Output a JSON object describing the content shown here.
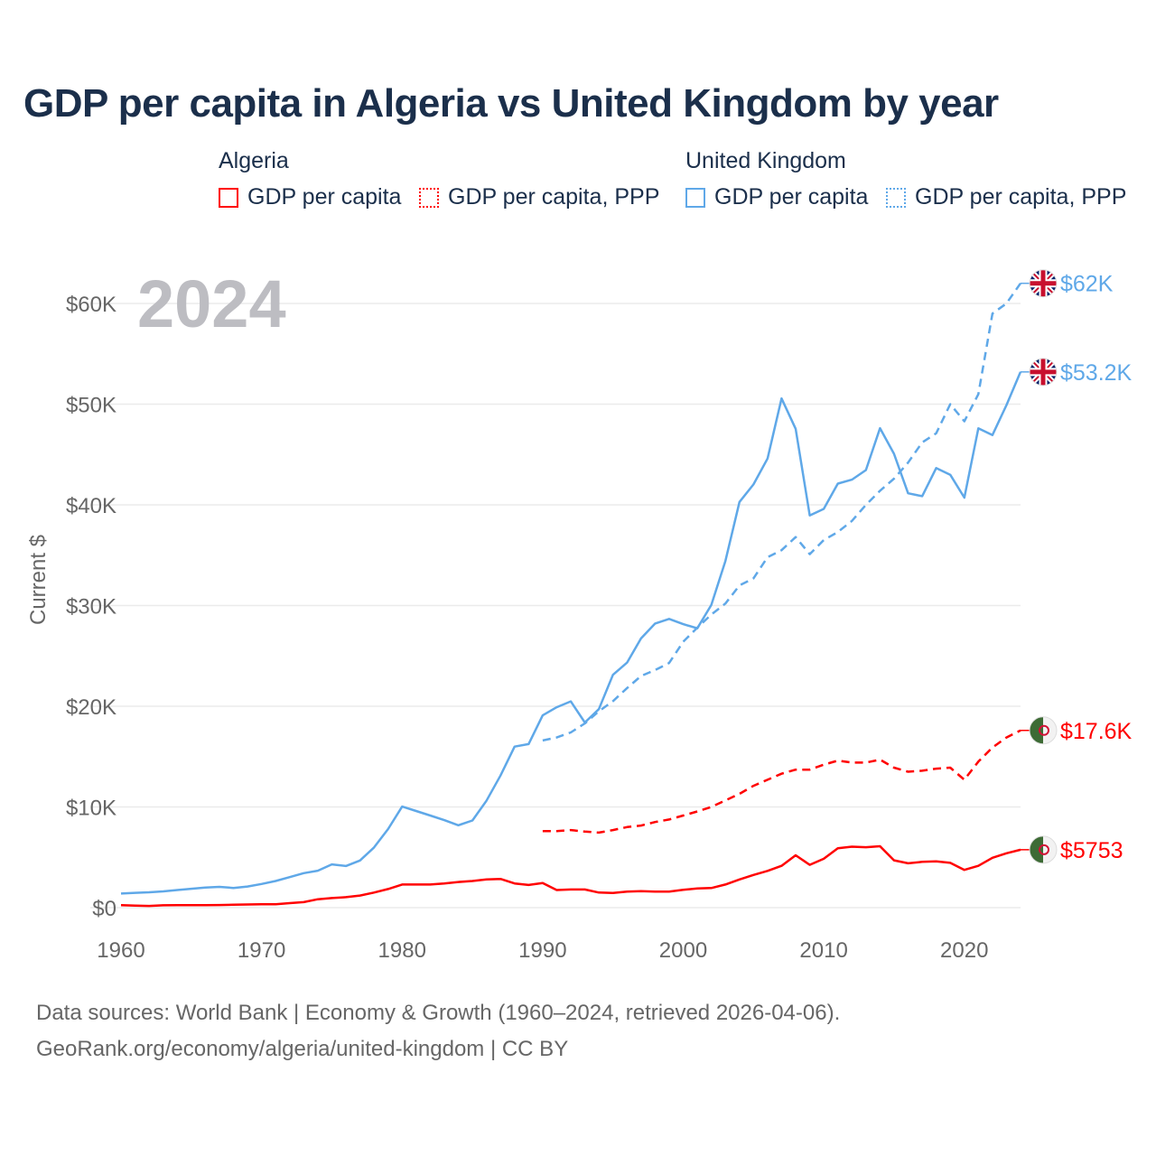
{
  "title": "GDP per capita in Algeria vs United Kingdom by year",
  "legend": {
    "groups": [
      {
        "name": "Algeria",
        "color": "#ff0000",
        "items": [
          "GDP per capita",
          "GDP per capita, PPP"
        ]
      },
      {
        "name": "United Kingdom",
        "color": "#5fa8e8",
        "items": [
          "GDP per capita",
          "GDP per capita, PPP"
        ]
      }
    ]
  },
  "year_watermark": "2024",
  "footer": {
    "line1": "Data sources: World Bank | Economy & Growth (1960–2024, retrieved 2026-04-06).",
    "line2": "GeoRank.org/economy/algeria/united-kingdom | CC BY"
  },
  "chart_data": {
    "type": "line",
    "title": "GDP per capita in Algeria vs United Kingdom by year",
    "ylabel": "Current $",
    "xlabel": "",
    "xlim": [
      1960,
      2024
    ],
    "ylim": [
      0,
      60000
    ],
    "x_ticks": [
      1960,
      1970,
      1980,
      1990,
      2000,
      2010,
      2020
    ],
    "x_tick_labels": [
      "1960",
      "1970",
      "1980",
      "1990",
      "2000",
      "2010",
      "2020"
    ],
    "y_ticks": [
      0,
      10000,
      20000,
      30000,
      40000,
      50000,
      60000
    ],
    "y_tick_labels": [
      "$0",
      "$10K",
      "$20K",
      "$30K",
      "$40K",
      "$50K",
      "$60K"
    ],
    "grid": true,
    "series": [
      {
        "name": "United Kingdom GDP per capita",
        "color": "#5fa8e8",
        "dash": false,
        "start": 1960,
        "end_label": "$53.2K",
        "flag": "uk",
        "values": [
          1398,
          1472,
          1526,
          1613,
          1748,
          1874,
          1987,
          2059,
          1952,
          2101,
          2348,
          2650,
          3030,
          3426,
          3666,
          4300,
          4139,
          4681,
          5977,
          7805,
          10032,
          9599,
          9146,
          8691,
          8180,
          8652,
          10611,
          13119,
          15987,
          16239,
          19095,
          19901,
          20487,
          18389,
          19709,
          23123,
          24332,
          26734,
          28214,
          28669,
          28150,
          27744,
          30057,
          34420,
          40290,
          42030,
          44600,
          50566,
          47550,
          38952,
          39599,
          42110,
          42500,
          43450,
          47610,
          45070,
          41150,
          40860,
          43650,
          42990,
          40720,
          47600,
          46930,
          49900,
          53200
        ]
      },
      {
        "name": "United Kingdom GDP per capita, PPP",
        "color": "#5fa8e8",
        "dash": true,
        "start": 1990,
        "end_label": "$62K",
        "flag": "uk",
        "values": [
          16600,
          16900,
          17400,
          18300,
          19500,
          20500,
          21800,
          23000,
          23600,
          24300,
          26400,
          27800,
          29100,
          30200,
          32000,
          32700,
          34800,
          35500,
          36800,
          35100,
          36500,
          37300,
          38400,
          40000,
          41400,
          42600,
          44200,
          46200,
          47100,
          50000,
          48300,
          51000,
          59000,
          60000,
          62000
        ]
      },
      {
        "name": "Algeria GDP per capita",
        "color": "#ff0000",
        "dash": false,
        "start": 1960,
        "end_label": "$5753",
        "flag": "dz",
        "values": [
          250,
          210,
          170,
          230,
          240,
          250,
          240,
          260,
          290,
          310,
          340,
          340,
          450,
          550,
          830,
          950,
          1040,
          1200,
          1500,
          1850,
          2300,
          2300,
          2300,
          2400,
          2550,
          2650,
          2800,
          2850,
          2400,
          2250,
          2450,
          1750,
          1800,
          1800,
          1500,
          1450,
          1600,
          1630,
          1600,
          1600,
          1780,
          1900,
          1950,
          2300,
          2800,
          3250,
          3650,
          4150,
          5200,
          4250,
          4850,
          5900,
          6050,
          6000,
          6100,
          4700,
          4400,
          4550,
          4600,
          4450,
          3750,
          4150,
          4950,
          5400,
          5753
        ]
      },
      {
        "name": "Algeria GDP per capita, PPP",
        "color": "#ff0000",
        "dash": true,
        "start": 1990,
        "end_label": "$17.6K",
        "flag": "dz",
        "values": [
          7600,
          7600,
          7700,
          7550,
          7450,
          7700,
          8000,
          8150,
          8500,
          8750,
          9150,
          9550,
          10000,
          10650,
          11300,
          12100,
          12700,
          13300,
          13700,
          13700,
          14200,
          14600,
          14400,
          14400,
          14700,
          13900,
          13500,
          13600,
          13800,
          13900,
          12700,
          14500,
          15900,
          16900,
          17600
        ]
      }
    ]
  }
}
